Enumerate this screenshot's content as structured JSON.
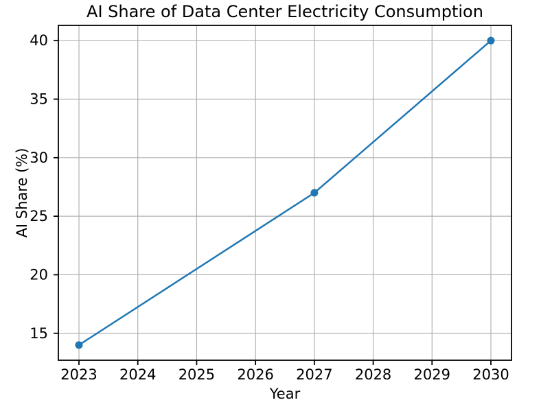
{
  "figure": {
    "background": "#ffffff"
  },
  "chart_data": {
    "type": "line",
    "title": "AI Share of Data Center Electricity Consumption",
    "xlabel": "Year",
    "ylabel": "AI Share (%)",
    "x": [
      2023,
      2027,
      2030
    ],
    "y": [
      14,
      27,
      40
    ],
    "xlim": [
      2022.65,
      2030.35
    ],
    "ylim": [
      12.7,
      41.3
    ],
    "xticks": [
      2023,
      2024,
      2025,
      2026,
      2027,
      2028,
      2029,
      2030
    ],
    "yticks": [
      15,
      20,
      25,
      30,
      35,
      40
    ],
    "grid": true,
    "legend": false,
    "line_color": "#1f77b4",
    "marker": "circle",
    "marker_radius": 5.5,
    "line_width": 2.5,
    "grid_color": "#b0b0b0",
    "spine_color": "#000000",
    "text_color": "#000000",
    "tick_font_size": 21
  }
}
